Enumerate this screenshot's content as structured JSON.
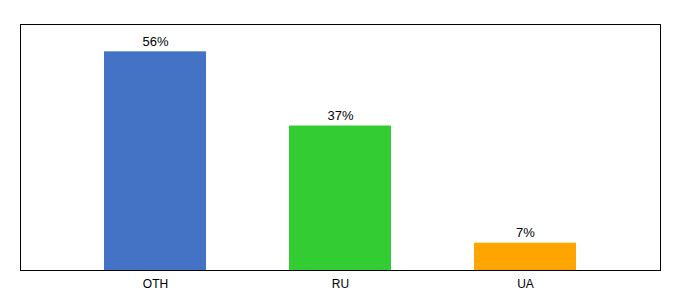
{
  "chart_data": {
    "type": "bar",
    "categories": [
      "OTH",
      "RU",
      "UA"
    ],
    "values": [
      56,
      37,
      7
    ],
    "value_labels": [
      "56%",
      "37%",
      "7%"
    ],
    "colors": [
      "#4472C4",
      "#33CC33",
      "#FFA500"
    ],
    "ylim": [
      0,
      63
    ],
    "yticks": [],
    "data_labels": true,
    "tick_labels": "x"
  }
}
